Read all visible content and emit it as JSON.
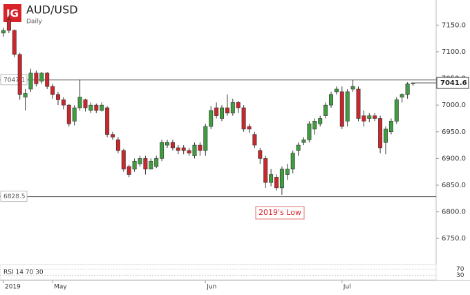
{
  "chart_data": {
    "type": "candlestick",
    "logo": "IG",
    "title": "AUD/USD",
    "subtitle": "Daily",
    "categories": [
      "2019",
      null,
      null,
      null,
      null,
      null,
      null,
      null,
      null,
      "May",
      null,
      null,
      null,
      null,
      null,
      null,
      null,
      null,
      null,
      null,
      null,
      null,
      null,
      null,
      null,
      null,
      null,
      null,
      null,
      null,
      null,
      null,
      null,
      null,
      null,
      null,
      null,
      "Jun",
      null,
      null,
      null,
      null,
      null,
      null,
      null,
      null,
      null,
      null,
      null,
      null,
      null,
      null,
      null,
      null,
      null,
      null,
      null,
      null,
      null,
      null,
      null,
      null,
      "Jul",
      null,
      null,
      null,
      null,
      null,
      null,
      null,
      null,
      null,
      null,
      null,
      null,
      null
    ],
    "open": [
      7135,
      7160,
      7140,
      7095,
      7015,
      7030,
      7060,
      7045,
      7060,
      7035,
      7020,
      7010,
      7000,
      6970,
      6995,
      7010,
      6990,
      7000,
      6990,
      6995,
      6945,
      6935,
      6915,
      6885,
      6880,
      6890,
      6900,
      6880,
      6885,
      6900,
      6925,
      6930,
      6920,
      6920,
      6915,
      6905,
      6925,
      6915,
      6960,
      6995,
      6975,
      6995,
      6985,
      7005,
      6995,
      6960,
      6945,
      6915,
      6900,
      6855,
      6865,
      6845,
      6870,
      6880,
      6915,
      6930,
      6935,
      6955,
      6965,
      6980,
      7000,
      7025,
      7025,
      6970,
      7030,
      7030,
      6980,
      6975,
      6980,
      6975,
      6930,
      6950,
      6970,
      7015,
      7020,
      7040
    ],
    "high": [
      7145,
      7168,
      7142,
      7098,
      7030,
      7068,
      7065,
      7062,
      7062,
      7040,
      7025,
      7015,
      7002,
      7000,
      7048,
      7012,
      7005,
      7003,
      7005,
      6998,
      6950,
      6940,
      6918,
      6888,
      6900,
      6905,
      6905,
      6900,
      6905,
      6935,
      6935,
      6935,
      6925,
      6925,
      6920,
      6930,
      6930,
      6965,
      6998,
      7005,
      7000,
      7020,
      7012,
      7008,
      7000,
      6965,
      6950,
      6920,
      6905,
      6880,
      6870,
      6885,
      6890,
      6915,
      6930,
      6940,
      6970,
      6975,
      6980,
      7005,
      7025,
      7035,
      7035,
      7030,
      7047,
      7035,
      6990,
      6985,
      6985,
      6980,
      6960,
      6975,
      7015,
      7022,
      7043,
      7043
    ],
    "low": [
      7128,
      7135,
      7090,
      7010,
      6990,
      7025,
      7035,
      7040,
      7030,
      7012,
      7000,
      6992,
      6960,
      6962,
      6990,
      6988,
      6985,
      6985,
      6988,
      6940,
      6935,
      6910,
      6875,
      6865,
      6875,
      6885,
      6870,
      6880,
      6882,
      6895,
      6920,
      6915,
      6908,
      6908,
      6905,
      6900,
      6905,
      6905,
      6955,
      6975,
      6970,
      6980,
      6980,
      6985,
      6950,
      6948,
      6920,
      6890,
      6845,
      6848,
      6840,
      6832,
      6860,
      6872,
      6905,
      6925,
      6930,
      6945,
      6960,
      6975,
      6995,
      7020,
      6955,
      6960,
      7025,
      6970,
      6960,
      6968,
      6970,
      6910,
      6908,
      6945,
      6965,
      7005,
      7012,
      7036
    ],
    "close": [
      7140,
      7140,
      7095,
      7020,
      7022,
      7060,
      7040,
      7060,
      7035,
      7020,
      7010,
      7000,
      6965,
      6995,
      7015,
      6995,
      7000,
      6990,
      7000,
      6945,
      6940,
      6915,
      6880,
      6870,
      6895,
      6900,
      6880,
      6895,
      6900,
      6930,
      6930,
      6920,
      6915,
      6915,
      6910,
      6925,
      6915,
      6960,
      6990,
      6980,
      6995,
      6985,
      7005,
      6995,
      6955,
      6955,
      6925,
      6900,
      6855,
      6870,
      6845,
      6880,
      6880,
      6910,
      6925,
      6935,
      6965,
      6970,
      6975,
      7000,
      7020,
      7030,
      6960,
      7025,
      7035,
      6975,
      6970,
      6980,
      6975,
      6920,
      6955,
      6970,
      7010,
      7020,
      7040,
      7041.6
    ],
    "up_color": "#3f9c3f",
    "down_color": "#c8282d",
    "ylim": [
      6705,
      7197
    ],
    "yticks": [
      {
        "value": 7150,
        "label": "7150.0"
      },
      {
        "value": 7100,
        "label": "7100.0"
      },
      {
        "value": 7050,
        "label": "7050.0"
      },
      {
        "value": 7000,
        "label": "7000.0"
      },
      {
        "value": 6950,
        "label": "6950.0"
      },
      {
        "value": 6900,
        "label": "6900.0"
      },
      {
        "value": 6850,
        "label": "6850.0"
      },
      {
        "value": 6800,
        "label": "6800.0"
      },
      {
        "value": 6750,
        "label": "6750.0"
      }
    ],
    "hlines": [
      7047.1,
      6828.5
    ],
    "last_price": 7041.6,
    "annotation": "2019's Low",
    "rsi": {
      "label": "RSI 14 70 30",
      "ylim": [
        0,
        100
      ],
      "yticks": [
        70,
        30
      ]
    }
  }
}
